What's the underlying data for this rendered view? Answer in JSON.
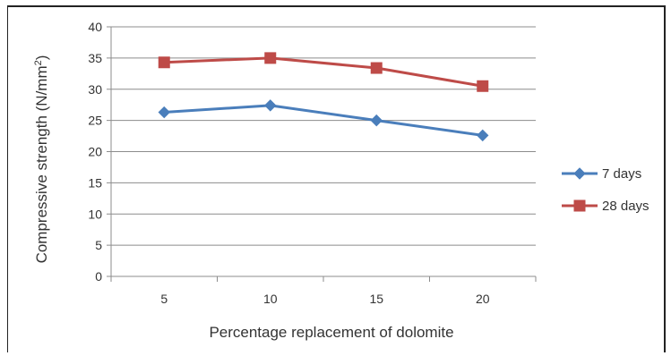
{
  "chart_data": {
    "type": "line",
    "title": "",
    "xlabel": "Percentage replacement of dolomite",
    "ylabel_main": "Compressive strength (N/mm",
    "ylabel_sup": "2",
    "ylabel_end": ")",
    "categories": [
      "5",
      "10",
      "15",
      "20"
    ],
    "x": [
      5,
      10,
      15,
      20
    ],
    "ylim": [
      0,
      40
    ],
    "yticks": [
      "0",
      "5",
      "10",
      "15",
      "20",
      "25",
      "30",
      "35",
      "40"
    ],
    "grid": true,
    "legend_position": "right",
    "series": [
      {
        "name": "7 days",
        "values": [
          26.3,
          27.4,
          25.0,
          22.6
        ],
        "color": "#4a7ebb",
        "marker": "diamond"
      },
      {
        "name": "28 days",
        "values": [
          34.3,
          35.0,
          33.4,
          30.5
        ],
        "color": "#be4b48",
        "marker": "square"
      }
    ]
  }
}
